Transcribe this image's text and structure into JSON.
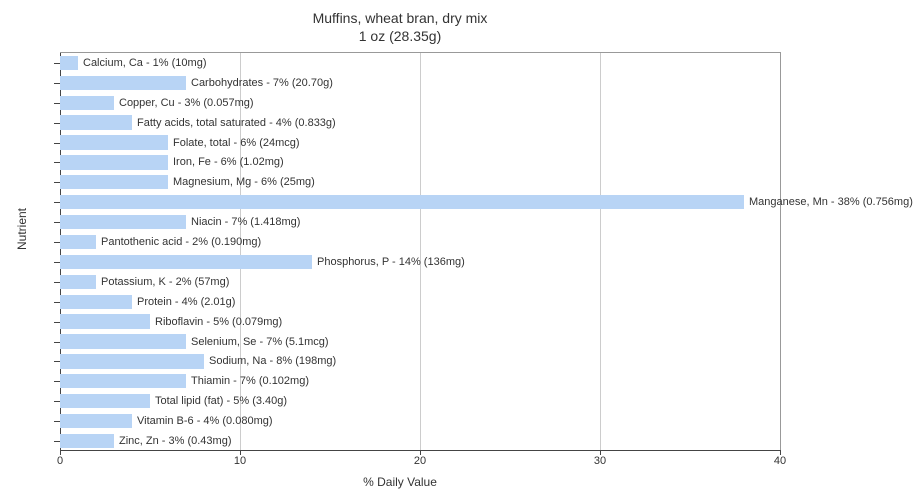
{
  "chart": {
    "type": "bar-horizontal",
    "title_line1": "Muffins, wheat bran, dry mix",
    "title_line2": "1 oz (28.35g)",
    "x_axis_title": "% Daily Value",
    "y_axis_title": "Nutrient",
    "xlim": [
      0,
      40
    ],
    "xtick_step": 10,
    "xtick_labels": [
      "0",
      "10",
      "20",
      "30",
      "40"
    ],
    "background_color": "#ffffff",
    "bar_color": "#b8d4f5",
    "grid_color": "#cccccc",
    "axis_color": "#444444",
    "text_color": "#333333",
    "label_fontsize": 11,
    "axis_title_fontsize": 12,
    "title_fontsize": 14,
    "bars": [
      {
        "label": "Calcium, Ca - 1% (10mg)",
        "value": 1
      },
      {
        "label": "Carbohydrates - 7% (20.70g)",
        "value": 7
      },
      {
        "label": "Copper, Cu - 3% (0.057mg)",
        "value": 3
      },
      {
        "label": "Fatty acids, total saturated - 4% (0.833g)",
        "value": 4
      },
      {
        "label": "Folate, total - 6% (24mcg)",
        "value": 6
      },
      {
        "label": "Iron, Fe - 6% (1.02mg)",
        "value": 6
      },
      {
        "label": "Magnesium, Mg - 6% (25mg)",
        "value": 6
      },
      {
        "label": "Manganese, Mn - 38% (0.756mg)",
        "value": 38
      },
      {
        "label": "Niacin - 7% (1.418mg)",
        "value": 7
      },
      {
        "label": "Pantothenic acid - 2% (0.190mg)",
        "value": 2
      },
      {
        "label": "Phosphorus, P - 14% (136mg)",
        "value": 14
      },
      {
        "label": "Potassium, K - 2% (57mg)",
        "value": 2
      },
      {
        "label": "Protein - 4% (2.01g)",
        "value": 4
      },
      {
        "label": "Riboflavin - 5% (0.079mg)",
        "value": 5
      },
      {
        "label": "Selenium, Se - 7% (5.1mcg)",
        "value": 7
      },
      {
        "label": "Sodium, Na - 8% (198mg)",
        "value": 8
      },
      {
        "label": "Thiamin - 7% (0.102mg)",
        "value": 7
      },
      {
        "label": "Total lipid (fat) - 5% (3.40g)",
        "value": 5
      },
      {
        "label": "Vitamin B-6 - 4% (0.080mg)",
        "value": 4
      },
      {
        "label": "Zinc, Zn - 3% (0.43mg)",
        "value": 3
      }
    ]
  }
}
